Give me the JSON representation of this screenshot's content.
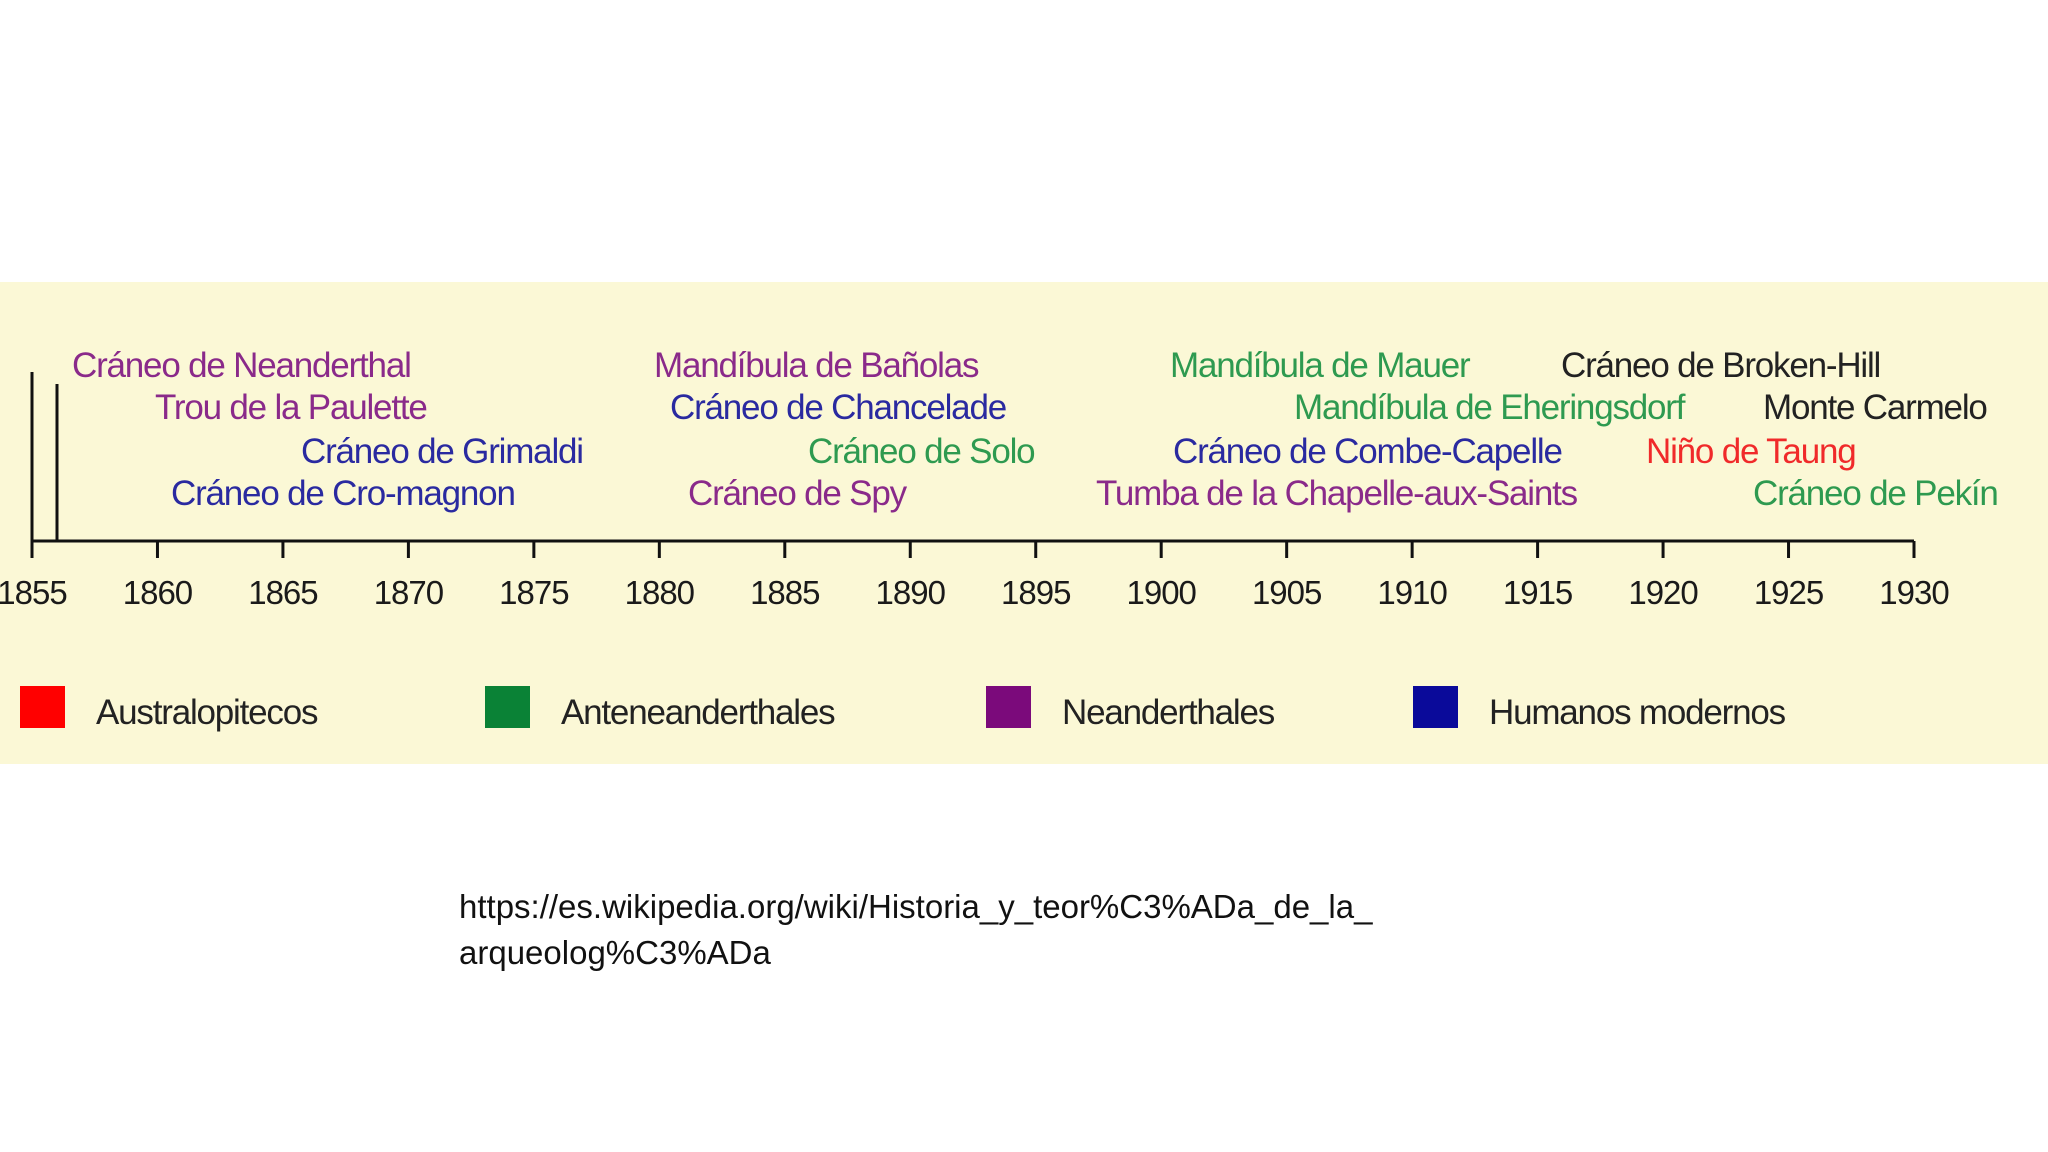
{
  "axis": {
    "min_year": 1855,
    "max_year": 1930,
    "ticks": [
      1855,
      1860,
      1865,
      1870,
      1875,
      1880,
      1885,
      1890,
      1895,
      1900,
      1905,
      1910,
      1915,
      1920,
      1925,
      1930
    ],
    "tick_labels": [
      "1855",
      "1860",
      "1865",
      "1870",
      "1875",
      "1880",
      "1885",
      "1890",
      "1895",
      "1900",
      "1905",
      "1910",
      "1915",
      "1920",
      "1925",
      "1930"
    ]
  },
  "events": [
    {
      "label": "Cráneo de Neanderthal",
      "group": "Neanderthales",
      "row": 1
    },
    {
      "label": "Trou de la Paulette",
      "group": "Neanderthales",
      "row": 2
    },
    {
      "label": "Cráneo de Grimaldi",
      "group": "Humanos modernos",
      "row": 3
    },
    {
      "label": "Cráneo de Cro-magnon",
      "group": "Humanos modernos",
      "row": 4
    },
    {
      "label": "Mandíbula de Bañolas",
      "group": "Neanderthales",
      "row": 1
    },
    {
      "label": "Cráneo de Chancelade",
      "group": "Humanos modernos",
      "row": 2
    },
    {
      "label": "Cráneo de Solo",
      "group": "Anteneanderthales",
      "row": 3
    },
    {
      "label": "Cráneo de Spy",
      "group": "Neanderthales",
      "row": 4
    },
    {
      "label": "Mandíbula de Mauer",
      "group": "Anteneanderthales",
      "row": 1
    },
    {
      "label": "Mandíbula de Eheringsdorf",
      "group": "Anteneanderthales",
      "row": 2
    },
    {
      "label": "Cráneo de Combe-Capelle",
      "group": "Humanos modernos",
      "row": 3
    },
    {
      "label": "Tumba de la Chapelle-aux-Saints",
      "group": "Neanderthales",
      "row": 4
    },
    {
      "label": "Cráneo de Broken-Hill",
      "group": "",
      "row": 1
    },
    {
      "label": "Monte Carmelo",
      "group": "",
      "row": 2
    },
    {
      "label": "Niño de Taung",
      "group": "Australopitecos",
      "row": 3
    },
    {
      "label": "Cráneo de Pekín",
      "group": "Anteneanderthales",
      "row": 4
    }
  ],
  "legend": [
    {
      "label": "Australopitecos",
      "color": "#ff0000"
    },
    {
      "label": "Anteneanderthales",
      "color": "#0a8236"
    },
    {
      "label": "Neanderthales",
      "color": "#7b0a7b"
    },
    {
      "label": "Humanos modernos",
      "color": "#0a0a9a"
    }
  ],
  "text_colors": {
    "Australopitecos": "#f02a2a",
    "Anteneanderthales": "#2e9a50",
    "Neanderthales": "#8a2a8a",
    "Humanos modernos": "#2a2aa0",
    "none": "#222222"
  },
  "source": {
    "line1": "https://es.wikipedia.org/wiki/Historia_y_teor%C3%ADa_de_la_",
    "line2": "arqueolog%C3%ADa"
  }
}
